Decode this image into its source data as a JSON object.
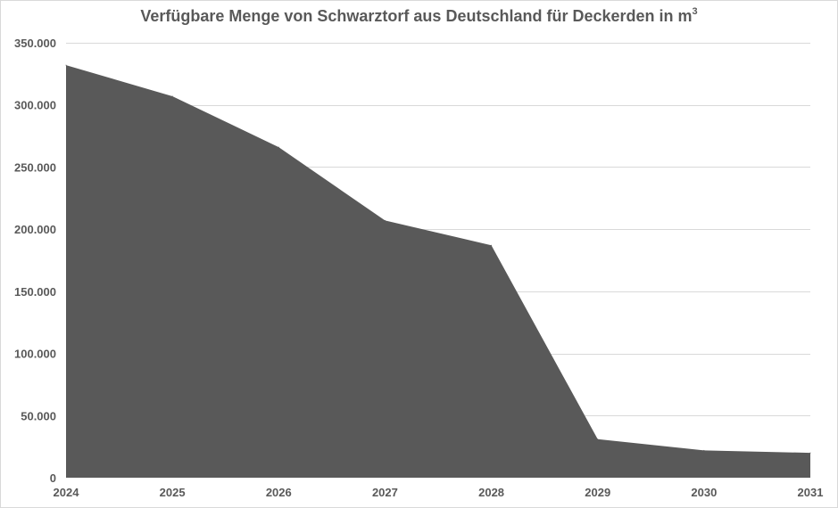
{
  "chart_data": {
    "type": "area",
    "title": "Verfügbare Menge von Schwarztorf aus Deutschland für Deckerden in m",
    "title_superscript": "3",
    "categories": [
      "2024",
      "2025",
      "2026",
      "2027",
      "2028",
      "2029",
      "2030",
      "2031"
    ],
    "series": [
      {
        "values": [
          332000,
          307000,
          266000,
          207000,
          187000,
          31000,
          22000,
          20000
        ],
        "color": "#595959"
      }
    ],
    "ylim": [
      0,
      350000
    ],
    "y_ticks": [
      0,
      50000,
      100000,
      150000,
      200000,
      250000,
      300000,
      350000
    ],
    "y_tick_labels": [
      "0",
      "50.000",
      "100.000",
      "150.000",
      "200.000",
      "250.000",
      "300.000",
      "350.000"
    ],
    "xlabel": "",
    "ylabel": "",
    "grid": true,
    "legend": "none",
    "gridline_color": "#d9d9d9",
    "label_color": "#595959"
  }
}
